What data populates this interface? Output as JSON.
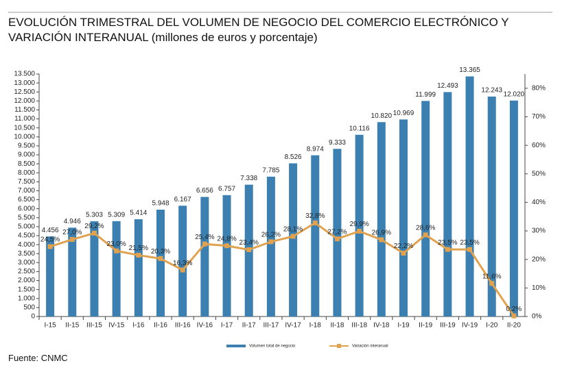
{
  "chart_data": {
    "type": "bar",
    "title": "EVOLUCIÓN TRIMESTRAL DEL VOLUMEN DE NEGOCIO DEL COMERCIO ELECTRÓNICO Y VARIACIÓN INTERANUAL (millones de euros y porcentaje)",
    "source": "Fuente: CNMC",
    "categories": [
      "I-15",
      "II-15",
      "III-15",
      "IV-15",
      "I-16",
      "II-16",
      "III-16",
      "IV-16",
      "I-17",
      "II-17",
      "III-17",
      "IV-17",
      "I-18",
      "II-18",
      "III-18",
      "IV-18",
      "I-19",
      "II-19",
      "III-19",
      "IV-19",
      "I-20",
      "II-20"
    ],
    "series": [
      {
        "name": "Volumen total de negocio",
        "color": "#3b80b1",
        "type": "bar",
        "values": [
          4456,
          4946,
          5303,
          5309,
          5414,
          5948,
          6167,
          6656,
          6757,
          7338,
          7785,
          8526,
          8974,
          9333,
          10116,
          10820,
          10969,
          11999,
          12493,
          13365,
          12243,
          12020
        ],
        "value_labels": [
          "4.456",
          "4.946",
          "5.303",
          "5.309",
          "5.414",
          "5.948",
          "6.167",
          "6.656",
          "6.757",
          "7.338",
          "7.785",
          "8.526",
          "8.974",
          "9.333",
          "10.116",
          "10.820",
          "10.969",
          "11.999",
          "12.493",
          "13.365",
          "12.243",
          "12.020"
        ]
      },
      {
        "name": "Variación interanual",
        "color": "#e0a24e",
        "type": "line",
        "axis": "y2",
        "values": [
          24.5,
          27.0,
          29.2,
          23.0,
          21.5,
          20.3,
          16.3,
          25.4,
          24.8,
          23.4,
          26.2,
          28.1,
          32.8,
          27.2,
          29.9,
          26.9,
          22.2,
          28.6,
          23.5,
          23.5,
          11.6,
          0.2
        ],
        "value_labels": [
          "24,5%",
          "27,0%",
          "29,2%",
          "23,0%",
          "21,5%",
          "20,3%",
          "16,3%",
          "25,4%",
          "24,8%",
          "23,4%",
          "26,2%",
          "28,1%",
          "32,8%",
          "27,2%",
          "29,9%",
          "26,9%",
          "22,2%",
          "28,6%",
          "23,5%",
          "23,5%",
          "11,6%",
          "0,2%"
        ]
      }
    ],
    "ylim": [
      0,
      13500
    ],
    "yticks": [
      0,
      500,
      {
        "value": 1000,
        "label": "1.000"
      },
      {
        "value": 1500,
        "label": "1.500"
      },
      {
        "value": 2000,
        "label": "2.000"
      },
      {
        "value": 2500,
        "label": "2.500"
      },
      {
        "value": 3000,
        "label": "3.000"
      },
      {
        "value": 3500,
        "label": "3.500"
      },
      {
        "value": 4000,
        "label": "4.000"
      },
      {
        "value": 4500,
        "label": "4.500"
      },
      {
        "value": 5000,
        "label": "5.000"
      },
      {
        "value": 5500,
        "label": "5.500"
      },
      {
        "value": 6000,
        "label": "6.000"
      },
      {
        "value": 6500,
        "label": "6.500"
      },
      {
        "value": 7000,
        "label": "7.000"
      },
      {
        "value": 7500,
        "label": "7.500"
      },
      {
        "value": 8000,
        "label": "8.000"
      },
      {
        "value": 8500,
        "label": "8.500"
      },
      {
        "value": 9000,
        "label": "9.000"
      },
      {
        "value": 9500,
        "label": "9.500"
      },
      {
        "value": 10000,
        "label": "10.000"
      },
      {
        "value": 10500,
        "label": "10.500"
      },
      {
        "value": 11000,
        "label": "11.000"
      },
      {
        "value": 11500,
        "label": "11.500"
      },
      {
        "value": 12000,
        "label": "12.000"
      },
      {
        "value": 12500,
        "label": "12.500"
      },
      {
        "value": 13000,
        "label": "13.000"
      },
      {
        "value": 13500,
        "label": "13.500"
      }
    ],
    "y2lim": [
      0,
      85
    ],
    "y2ticks": [
      {
        "value": 0,
        "label": "0%"
      },
      {
        "value": 10,
        "label": "10%"
      },
      {
        "value": 20,
        "label": "20%"
      },
      {
        "value": 30,
        "label": "30%"
      },
      {
        "value": 40,
        "label": "40%"
      },
      {
        "value": 50,
        "label": "50%"
      },
      {
        "value": 60,
        "label": "60%"
      },
      {
        "value": 70,
        "label": "70%"
      },
      {
        "value": 80,
        "label": "80%"
      }
    ],
    "grid": false,
    "legend": "bottom"
  }
}
